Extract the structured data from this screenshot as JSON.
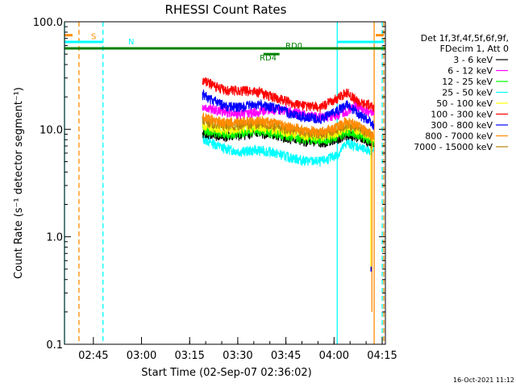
{
  "chart_data": {
    "type": "line",
    "title": "RHESSI Count Rates",
    "xlabel": "Start Time (02-Sep-07 02:36:02)",
    "ylabel": "Count Rate (s⁻¹ detector segment⁻¹)",
    "y_scale": "log",
    "ylim": [
      0.1,
      100.0
    ],
    "yticks": [
      "0.1",
      "1.0",
      "10.0",
      "100.0"
    ],
    "xlim": [
      "02:36",
      "04:16"
    ],
    "xticks": [
      "02:45",
      "03:00",
      "03:15",
      "03:30",
      "03:45",
      "04:00",
      "04:15"
    ],
    "grid": false,
    "legend_position": "right",
    "legend_header": [
      "Det 1f,3f,4f,5f,6f,9f,",
      "FDecim 1, Att 0"
    ],
    "x_minutes": [
      43.0,
      45.0,
      50.0,
      55.0,
      60.0,
      65.0,
      70.0,
      75.0,
      80.0,
      85.0,
      88.0,
      91.0,
      93.0,
      95.0,
      96.5
    ],
    "series": [
      {
        "name": "3 - 6 keV",
        "color": "#000000",
        "values": [
          9.0,
          9.0,
          8.5,
          8.8,
          9.3,
          8.8,
          8.2,
          7.7,
          7.4,
          8.2,
          9.0,
          8.5,
          8.0,
          7.6,
          7.0
        ]
      },
      {
        "name": "6 - 12 keV",
        "color": "#ff00ff",
        "values": [
          16.0,
          15.5,
          14.5,
          14.0,
          14.5,
          15.5,
          14.8,
          13.5,
          12.8,
          13.5,
          15.0,
          16.5,
          15.0,
          14.5,
          13.8
        ]
      },
      {
        "name": "12 - 25 keV",
        "color": "#00ff00",
        "values": [
          10.0,
          9.6,
          9.0,
          9.3,
          9.7,
          9.2,
          8.6,
          8.2,
          7.9,
          8.5,
          9.4,
          9.0,
          8.5,
          8.0,
          7.5
        ]
      },
      {
        "name": "25 - 50 keV",
        "color": "#00ffff",
        "values": [
          8.2,
          7.7,
          6.6,
          6.2,
          6.4,
          6.1,
          5.5,
          5.1,
          5.0,
          5.8,
          7.5,
          7.0,
          6.5,
          6.4,
          6.2
        ]
      },
      {
        "name": "50 - 100 keV",
        "color": "#ffff00",
        "values": [
          11.0,
          10.5,
          9.8,
          10.2,
          10.5,
          10.0,
          9.4,
          8.8,
          8.6,
          9.3,
          10.3,
          9.8,
          9.2,
          8.8,
          8.3
        ]
      },
      {
        "name": "100 - 300 keV",
        "color": "#ff0000",
        "values": [
          29.0,
          27.0,
          23.0,
          23.0,
          22.5,
          20.0,
          18.0,
          16.5,
          16.0,
          19.5,
          22.0,
          18.5,
          17.5,
          17.0,
          15.5
        ]
      },
      {
        "name": "300 - 800 keV",
        "color": "#0000ff",
        "values": [
          21.0,
          19.5,
          16.5,
          16.0,
          17.0,
          16.0,
          14.2,
          13.0,
          12.5,
          14.8,
          17.0,
          14.5,
          13.0,
          12.0,
          10.5
        ]
      },
      {
        "name": "800 - 7000 keV",
        "color": "#ff8c00",
        "values": [
          13.0,
          12.5,
          11.5,
          11.8,
          12.0,
          11.5,
          10.5,
          9.8,
          9.5,
          10.5,
          12.0,
          11.0,
          10.0,
          9.3,
          8.5
        ]
      },
      {
        "name": "7000 - 15000 keV",
        "color": "#b8860b",
        "values": [
          12.0,
          11.5,
          10.7,
          11.0,
          11.2,
          10.7,
          10.0,
          9.3,
          9.0,
          9.8,
          11.0,
          10.4,
          9.6,
          9.0,
          8.2
        ]
      }
    ],
    "attenuator_bars": [
      {
        "label": "S",
        "color": "#ff8c00",
        "y": 75.0,
        "x_min": [
          0.0,
          2.5
        ]
      },
      {
        "label": "S",
        "color": "#ff8c00",
        "y": 75.0,
        "x_min": [
          97.0,
          99.5
        ]
      },
      {
        "label": "N",
        "color": "#00ffff",
        "y": 65.0,
        "x_min": [
          0.0,
          12.0
        ]
      },
      {
        "label": "N",
        "color": "#00ffff",
        "y": 65.0,
        "x_min": [
          85.0,
          99.5
        ]
      },
      {
        "label": "RD0",
        "color": "#008000",
        "y": 56.5,
        "x_min": [
          0.0,
          100.0
        ]
      },
      {
        "label": "RD4",
        "color": "#008000",
        "y": 50.0,
        "x_min": [
          62.0,
          67.0
        ]
      }
    ],
    "vertical_lines": [
      {
        "x_min": 0.0,
        "color": "#00ffff",
        "style": "solid"
      },
      {
        "x_min": 85.0,
        "color": "#00ffff",
        "style": "solid"
      },
      {
        "x_min": 12.0,
        "color": "#00ffff",
        "style": "dashed"
      },
      {
        "x_min": 99.0,
        "color": "#00ffff",
        "style": "dashed"
      },
      {
        "x_min": 4.5,
        "color": "#ff8c00",
        "style": "dashed"
      },
      {
        "x_min": 96.5,
        "color": "#ff8c00",
        "style": "solid"
      },
      {
        "x_min": 99.5,
        "color": "#ff8c00",
        "style": "dashed"
      }
    ],
    "falloff_x_min": 95.8,
    "falloff_y": 0.2,
    "falloff_y2": 0.5,
    "timestamp": "16-Oct-2021 11:12"
  }
}
